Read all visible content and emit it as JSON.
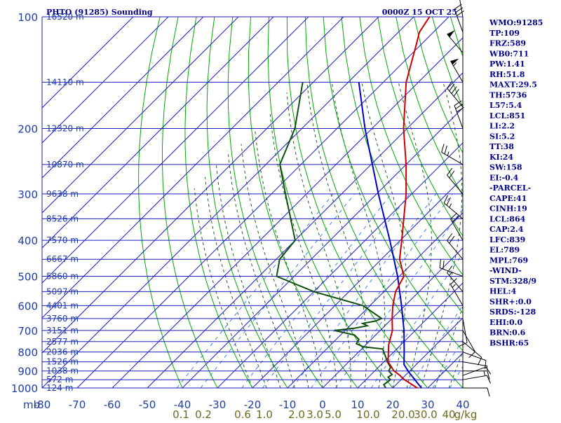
{
  "header": {
    "title": "PHTO (91285) Sounding",
    "datetime": "0000Z 15 OCT 25"
  },
  "colors": {
    "grid": "#1f1fbf",
    "isotherm": "#1f1fbf",
    "dry_adiabat": "#00aa00",
    "moist_adiabat": "#1f5f1f",
    "mixing_ratio": "#3f7fff",
    "temperature": "#cc0000",
    "dewpoint": "#0f4f0f",
    "parcel": "#0000cc",
    "wind": "#000000"
  },
  "indices": [
    "WMO:91285",
    "TP:109",
    "FRZ:589",
    "WB0:711",
    "PW:1.41",
    "RH:51.8",
    "MAXT:29.5",
    "TH:5736",
    "L57:5.4",
    "LCL:851",
    "LI:2.2",
    "SI:5.2",
    "TT:38",
    "KI:24",
    "SW:158",
    "EI:-0.4",
    "-PARCEL-",
    "CAPE:41",
    "CINH:19",
    "LCL:864",
    "CAP:2.4",
    "LFC:839",
    "EL:789",
    "MPL:769",
    "-WIND-",
    "STM:328/9",
    "HEL:4",
    "SHR+:0.0",
    "SRDS:-128",
    "EHI:0.0",
    "BRN:0.6",
    "BSHR:65"
  ],
  "chart_data": {
    "type": "skew-t",
    "y_axis": {
      "unit_label": "mb",
      "pressure_ticks": [
        100,
        200,
        300,
        400,
        500,
        600,
        700,
        800,
        900,
        1000
      ],
      "range": [
        1000,
        100
      ]
    },
    "x_axis": {
      "temperature_ticks": [
        -80,
        -70,
        -60,
        -50,
        -40,
        -30,
        -20,
        -10,
        0,
        10,
        20,
        30,
        40
      ],
      "range": [
        -80,
        40
      ]
    },
    "mixing_ratio_labels": [
      "0.1",
      "0.2",
      "0.6",
      "1.0",
      "2.0",
      "3.0",
      "5.0",
      "10.0",
      "20.0",
      "30.0",
      "40",
      "g/kg"
    ],
    "height_labels": [
      {
        "p": 100,
        "label": "16520 m"
      },
      {
        "p": 150,
        "label": "14110 m"
      },
      {
        "p": 200,
        "label": "12320 m"
      },
      {
        "p": 250,
        "label": "10870 m"
      },
      {
        "p": 300,
        "label": "9638 m"
      },
      {
        "p": 350,
        "label": "8526 m"
      },
      {
        "p": 400,
        "label": "7570 m"
      },
      {
        "p": 450,
        "label": "6667 m"
      },
      {
        "p": 500,
        "label": "5860 m"
      },
      {
        "p": 550,
        "label": "5097 m"
      },
      {
        "p": 600,
        "label": "4401 m"
      },
      {
        "p": 650,
        "label": "3760 m"
      },
      {
        "p": 700,
        "label": "3151 m"
      },
      {
        "p": 750,
        "label": "2577 m"
      },
      {
        "p": 800,
        "label": "2036 m"
      },
      {
        "p": 850,
        "label": "1526 m"
      },
      {
        "p": 900,
        "label": "1038 m"
      },
      {
        "p": 950,
        "label": "572 m"
      },
      {
        "p": 1000,
        "label": "124 m"
      }
    ],
    "temperature": [
      [
        1006,
        28.7
      ],
      [
        1000,
        27.0
      ],
      [
        950,
        21.0
      ],
      [
        925,
        18.5
      ],
      [
        900,
        15.5
      ],
      [
        850,
        11.2
      ],
      [
        800,
        8.5
      ],
      [
        765,
        6.5
      ],
      [
        700,
        3.5
      ],
      [
        650,
        0.0
      ],
      [
        600,
        -3.5
      ],
      [
        550,
        -6.7
      ],
      [
        500,
        -8.7
      ],
      [
        450,
        -14.8
      ],
      [
        400,
        -19.6
      ],
      [
        300,
        -31.6
      ],
      [
        250,
        -40.0
      ],
      [
        200,
        -51.0
      ],
      [
        150,
        -63.5
      ],
      [
        120,
        -71.0
      ],
      [
        110,
        -74.0
      ],
      [
        100,
        -75.5
      ]
    ],
    "dewpoint": [
      [
        1006,
        18.5
      ],
      [
        980,
        16.5
      ],
      [
        950,
        17.0
      ],
      [
        935,
        15.6
      ],
      [
        920,
        16.0
      ],
      [
        900,
        14.0
      ],
      [
        880,
        13.5
      ],
      [
        850,
        11.0
      ],
      [
        810,
        8.0
      ],
      [
        785,
        6.0
      ],
      [
        775,
        0.0
      ],
      [
        770,
        -1.0
      ],
      [
        760,
        -3.0
      ],
      [
        740,
        -3.5
      ],
      [
        720,
        -6.0
      ],
      [
        700,
        -13.0
      ],
      [
        690,
        -8.0
      ],
      [
        680,
        -5.0
      ],
      [
        670,
        -7.0
      ],
      [
        660,
        -4.0
      ],
      [
        650,
        -3.0
      ],
      [
        600,
        -12.0
      ],
      [
        550,
        -30.0
      ],
      [
        500,
        -45.0
      ],
      [
        450,
        -49.0
      ],
      [
        400,
        -50.0
      ],
      [
        300,
        -66.0
      ],
      [
        250,
        -76.0
      ],
      [
        200,
        -82.0
      ],
      [
        150,
        -93.0
      ]
    ],
    "parcel": [
      [
        1006,
        28.7
      ],
      [
        900,
        19.5
      ],
      [
        864,
        16.5
      ],
      [
        800,
        13.0
      ],
      [
        700,
        6.8
      ],
      [
        600,
        -1.0
      ],
      [
        500,
        -10.5
      ],
      [
        400,
        -23.0
      ],
      [
        300,
        -39.5
      ],
      [
        200,
        -62.0
      ],
      [
        150,
        -77.0
      ]
    ],
    "wind_barbs": [
      {
        "p": 1000,
        "dir": 90,
        "spd": 10
      },
      {
        "p": 950,
        "dir": 80,
        "spd": 10
      },
      {
        "p": 925,
        "dir": 70,
        "spd": 10
      },
      {
        "p": 900,
        "dir": 90,
        "spd": 15
      },
      {
        "p": 850,
        "dir": 100,
        "spd": 5
      },
      {
        "p": 800,
        "dir": 110,
        "spd": 10
      },
      {
        "p": 750,
        "dir": 130,
        "spd": 10
      },
      {
        "p": 700,
        "dir": 150,
        "spd": 10
      },
      {
        "p": 650,
        "dir": 170,
        "spd": 10
      },
      {
        "p": 600,
        "dir": 330,
        "spd": 15
      },
      {
        "p": 550,
        "dir": 320,
        "spd": 15
      },
      {
        "p": 500,
        "dir": 290,
        "spd": 20
      },
      {
        "p": 450,
        "dir": 320,
        "spd": 20
      },
      {
        "p": 400,
        "dir": 330,
        "spd": 20
      },
      {
        "p": 350,
        "dir": 310,
        "spd": 25
      },
      {
        "p": 300,
        "dir": 320,
        "spd": 20
      },
      {
        "p": 250,
        "dir": 300,
        "spd": 25
      },
      {
        "p": 200,
        "dir": 340,
        "spd": 30
      },
      {
        "p": 175,
        "dir": 320,
        "spd": 40
      },
      {
        "p": 150,
        "dir": 330,
        "spd": 55
      },
      {
        "p": 125,
        "dir": 320,
        "spd": 50
      },
      {
        "p": 110,
        "dir": 340,
        "spd": 30
      },
      {
        "p": 100,
        "dir": 350,
        "spd": 20
      }
    ]
  }
}
